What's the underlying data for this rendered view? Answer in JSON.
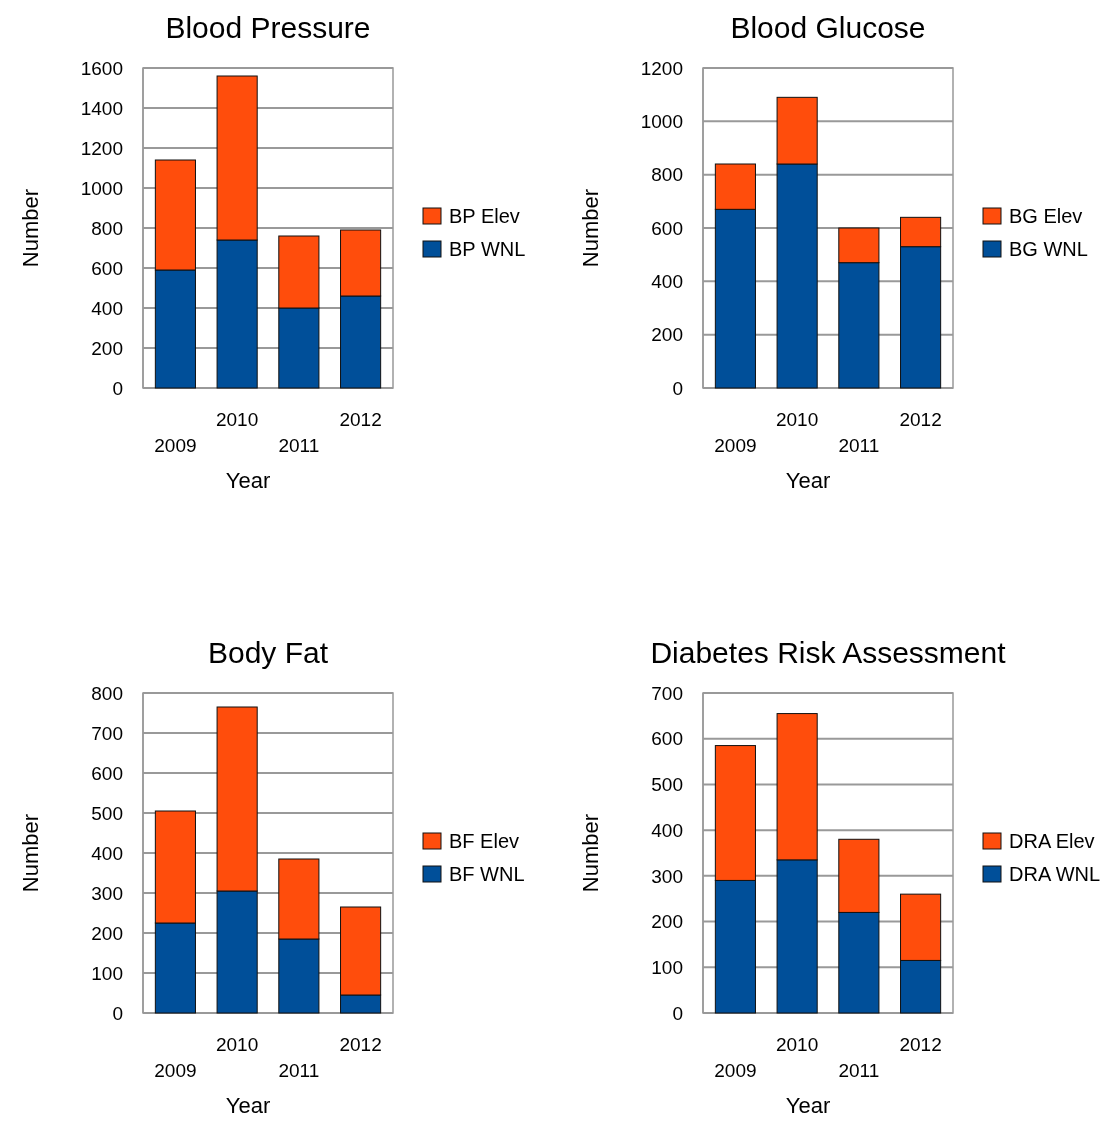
{
  "chart_data": [
    {
      "type": "bar",
      "title": "Blood Pressure",
      "xlabel": "Year",
      "ylabel": "Number",
      "categories": [
        "2009",
        "2010",
        "2011",
        "2012"
      ],
      "stacked": true,
      "ylim": [
        0,
        1600
      ],
      "yticks": [
        0,
        200,
        400,
        600,
        800,
        1000,
        1200,
        1400,
        1600
      ],
      "grid": "y",
      "legend": "right",
      "series": [
        {
          "name": "BP WNL",
          "color": "#004f99",
          "values": [
            590,
            740,
            400,
            460
          ]
        },
        {
          "name": "BP Elev",
          "color": "#ff4d0c",
          "values": [
            550,
            820,
            360,
            330
          ]
        }
      ]
    },
    {
      "type": "bar",
      "title": "Blood Glucose",
      "xlabel": "Year",
      "ylabel": "Number",
      "categories": [
        "2009",
        "2010",
        "2011",
        "2012"
      ],
      "stacked": true,
      "ylim": [
        0,
        1200
      ],
      "yticks": [
        0,
        200,
        400,
        600,
        800,
        1000,
        1200
      ],
      "grid": "y",
      "legend": "right",
      "series": [
        {
          "name": "BG WNL",
          "color": "#004f99",
          "values": [
            670,
            840,
            470,
            530
          ]
        },
        {
          "name": "BG Elev",
          "color": "#ff4d0c",
          "values": [
            170,
            250,
            130,
            110
          ]
        }
      ]
    },
    {
      "type": "bar",
      "title": "Body Fat",
      "xlabel": "Year",
      "ylabel": "Number",
      "categories": [
        "2009",
        "2010",
        "2011",
        "2012"
      ],
      "stacked": true,
      "ylim": [
        0,
        800
      ],
      "yticks": [
        0,
        100,
        200,
        300,
        400,
        500,
        600,
        700,
        800
      ],
      "grid": "y",
      "legend": "right",
      "series": [
        {
          "name": "BF WNL",
          "color": "#004f99",
          "values": [
            225,
            305,
            185,
            45
          ]
        },
        {
          "name": "BF Elev",
          "color": "#ff4d0c",
          "values": [
            280,
            460,
            200,
            220
          ]
        }
      ]
    },
    {
      "type": "bar",
      "title": "Diabetes Risk Assessment",
      "xlabel": "Year",
      "ylabel": "Number",
      "categories": [
        "2009",
        "2010",
        "2011",
        "2012"
      ],
      "stacked": true,
      "ylim": [
        0,
        700
      ],
      "yticks": [
        0,
        100,
        200,
        300,
        400,
        500,
        600,
        700
      ],
      "grid": "y",
      "legend": "right",
      "series": [
        {
          "name": "DRA WNL",
          "color": "#004f99",
          "values": [
            290,
            335,
            220,
            115
          ]
        },
        {
          "name": "DRA Elev",
          "color": "#ff4d0c",
          "values": [
            295,
            320,
            160,
            145
          ]
        }
      ]
    }
  ]
}
